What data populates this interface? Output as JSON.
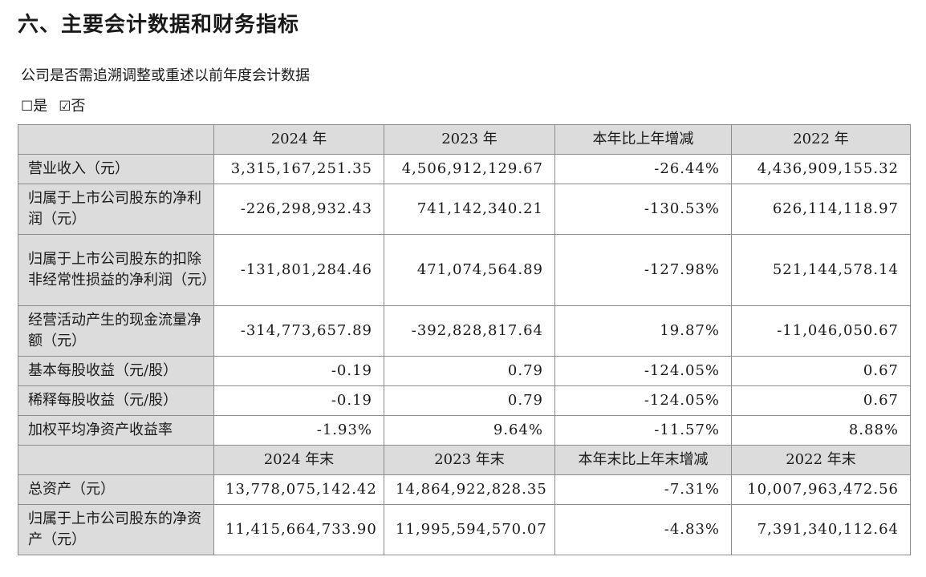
{
  "heading": "六、主要会计数据和财务指标",
  "question": "公司是否需追溯调整或重述以前年度会计数据",
  "answer": {
    "yes_box": "☐",
    "yes_label": "是",
    "no_box": "☑",
    "no_label": "否"
  },
  "table": {
    "header1": [
      "",
      "2024 年",
      "2023 年",
      "本年比上年增减",
      "2022 年"
    ],
    "rows1": [
      {
        "label": "营业收入（元）",
        "v2024": "3,315,167,251.35",
        "v2023": "4,506,912,129.67",
        "change": "-26.44%",
        "v2022": "4,436,909,155.32"
      },
      {
        "label": "归属于上市公司股东的净利润（元）",
        "v2024": "-226,298,932.43",
        "v2023": "741,142,340.21",
        "change": "-130.53%",
        "v2022": "626,114,118.97"
      },
      {
        "label": "归属于上市公司股东的扣除非经常性损益的净利润（元）",
        "v2024": "-131,801,284.46",
        "v2023": "471,074,564.89",
        "change": "-127.98%",
        "v2022": "521,144,578.14"
      },
      {
        "label": "经营活动产生的现金流量净额（元）",
        "v2024": "-314,773,657.89",
        "v2023": "-392,828,817.64",
        "change": "19.87%",
        "v2022": "-11,046,050.67"
      },
      {
        "label": "基本每股收益（元/股）",
        "v2024": "-0.19",
        "v2023": "0.79",
        "change": "-124.05%",
        "v2022": "0.67"
      },
      {
        "label": "稀释每股收益（元/股）",
        "v2024": "-0.19",
        "v2023": "0.79",
        "change": "-124.05%",
        "v2022": "0.67"
      },
      {
        "label": "加权平均净资产收益率",
        "v2024": "-1.93%",
        "v2023": "9.64%",
        "change": "-11.57%",
        "v2022": "8.88%"
      }
    ],
    "header2": [
      "",
      "2024 年末",
      "2023 年末",
      "本年末比上年末增减",
      "2022 年末"
    ],
    "rows2": [
      {
        "label": "总资产（元）",
        "v2024": "13,778,075,142.42",
        "v2023": "14,864,922,828.35",
        "change": "-7.31%",
        "v2022": "10,007,963,472.56"
      },
      {
        "label": "归属于上市公司股东的净资产（元）",
        "v2024": "11,415,664,733.90",
        "v2023": "11,995,594,570.07",
        "change": "-4.83%",
        "v2022": "7,391,340,112.64"
      }
    ]
  }
}
